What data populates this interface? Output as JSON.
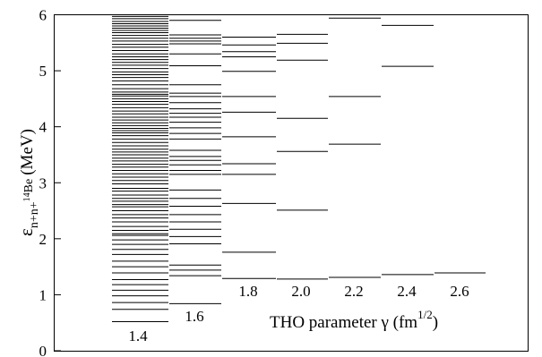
{
  "chart_data": {
    "type": "scatter",
    "title": "",
    "ylabel": "ε n+n+14Be (MeV)",
    "ylabel_parts": {
      "symbol": "ε",
      "sub_main": "n+n+",
      "sub_sup": "14",
      "sub_end": "Be",
      "unit": "(MeV)"
    },
    "xlabel": "THO parameter γ (fm1/2)",
    "xlabel_parts": {
      "main": "THO parameter γ (fm",
      "sup": "1/2",
      "close": ")"
    },
    "ylim": [
      0,
      6
    ],
    "y_ticks": [
      "0",
      "1",
      "2",
      "3",
      "4",
      "5",
      "6"
    ],
    "grid": false,
    "series": [
      {
        "name": "1.4",
        "label": "1.4",
        "values": [
          0.52,
          0.74,
          0.86,
          0.98,
          1.08,
          1.18,
          1.27,
          1.39,
          1.5,
          1.6,
          1.72,
          1.81,
          1.9,
          1.98,
          2.06,
          2.09,
          2.15,
          2.22,
          2.3,
          2.37,
          2.43,
          2.5,
          2.57,
          2.61,
          2.67,
          2.72,
          2.78,
          2.85,
          2.9,
          2.98,
          3.04,
          3.1,
          3.16,
          3.22,
          3.28,
          3.33,
          3.39,
          3.44,
          3.5,
          3.55,
          3.6,
          3.66,
          3.72,
          3.78,
          3.84,
          3.89,
          3.93,
          3.97,
          4.02,
          4.07,
          4.12,
          4.17,
          4.23,
          4.28,
          4.34,
          4.4,
          4.45,
          4.5,
          4.55,
          4.58,
          4.62,
          4.68,
          4.75,
          4.82,
          4.88,
          4.93,
          4.98,
          5.04,
          5.1,
          5.15,
          5.2,
          5.25,
          5.3,
          5.36,
          5.42,
          5.47,
          5.53,
          5.58,
          5.63,
          5.68,
          5.72,
          5.76,
          5.8,
          5.84,
          5.88,
          5.93,
          5.97
        ]
      },
      {
        "name": "1.6",
        "label": "1.6",
        "values": [
          0.84,
          1.34,
          1.44,
          1.53,
          1.91,
          2.04,
          2.17,
          2.3,
          2.43,
          2.58,
          2.72,
          2.87,
          3.15,
          3.22,
          3.32,
          3.4,
          3.47,
          3.58,
          3.78,
          3.88,
          3.98,
          4.08,
          4.17,
          4.24,
          4.32,
          4.43,
          4.54,
          4.6,
          4.75,
          5.09,
          5.3,
          5.48,
          5.53,
          5.58,
          5.64,
          5.9
        ]
      },
      {
        "name": "1.8",
        "label": "1.8",
        "values": [
          1.29,
          1.76,
          2.63,
          3.15,
          3.34,
          3.82,
          4.26,
          4.54,
          4.99,
          5.25,
          5.34,
          5.46,
          5.6
        ]
      },
      {
        "name": "2.0",
        "label": "2.0",
        "values": [
          1.28,
          2.51,
          3.56,
          4.15,
          5.19,
          5.49,
          5.65
        ]
      },
      {
        "name": "2.2",
        "label": "2.2",
        "values": [
          1.31,
          3.69,
          4.54,
          5.94
        ]
      },
      {
        "name": "2.4",
        "label": "2.4",
        "values": [
          1.36,
          5.08,
          5.81
        ]
      },
      {
        "name": "2.6",
        "label": "2.6",
        "values": [
          1.39
        ]
      }
    ]
  }
}
